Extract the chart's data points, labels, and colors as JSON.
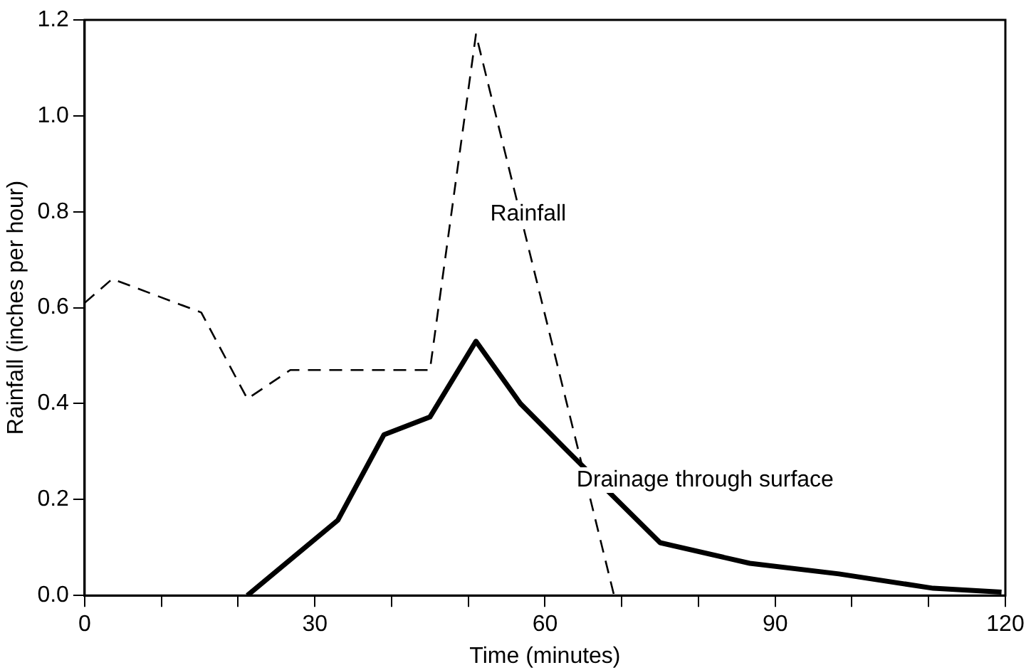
{
  "chart_data": {
    "type": "line",
    "xlabel": "Time (minutes)",
    "ylabel": "Rainfall (inches per hour)",
    "xlim": [
      0,
      120
    ],
    "xticks": [
      0,
      {
        "value": 10,
        "label": null
      },
      {
        "value": 20,
        "label": null
      },
      30,
      {
        "value": 40,
        "label": null
      },
      {
        "value": 50,
        "label": null
      },
      60,
      {
        "value": 70,
        "label": null
      },
      {
        "value": 80,
        "label": null
      },
      90,
      {
        "value": 100,
        "label": null
      },
      {
        "value": 110,
        "label": null
      },
      120
    ],
    "ylim": [
      0,
      1.2
    ],
    "yticks": [
      {
        "value": 0,
        "label": "0.0"
      },
      0.2,
      0.4,
      0.6,
      0.8,
      {
        "value": 1,
        "label": "1.0"
      },
      1.2
    ],
    "grid": false,
    "legend": false,
    "marker": "none",
    "series": [
      {
        "name": "Rainfall",
        "color": "#000000",
        "line_style": "dashed",
        "x": [
          0,
          3.6,
          15.2,
          21.2,
          26.8,
          45,
          51,
          69
        ],
        "values": [
          0.61,
          0.66,
          0.59,
          0.41,
          0.47,
          0.47,
          1.17,
          0
        ]
      },
      {
        "name": "Drainage through surface",
        "color": "#000000",
        "line_style": "solid",
        "x": [
          21.2,
          33,
          39,
          45,
          51,
          56.8,
          63,
          75,
          86.7,
          98.3,
          110.6,
          119.5
        ],
        "values": [
          0,
          0.157,
          0.335,
          0.372,
          0.53,
          0.4,
          0.3,
          0.11,
          0.067,
          0.045,
          0.015,
          0.007
        ]
      }
    ]
  }
}
